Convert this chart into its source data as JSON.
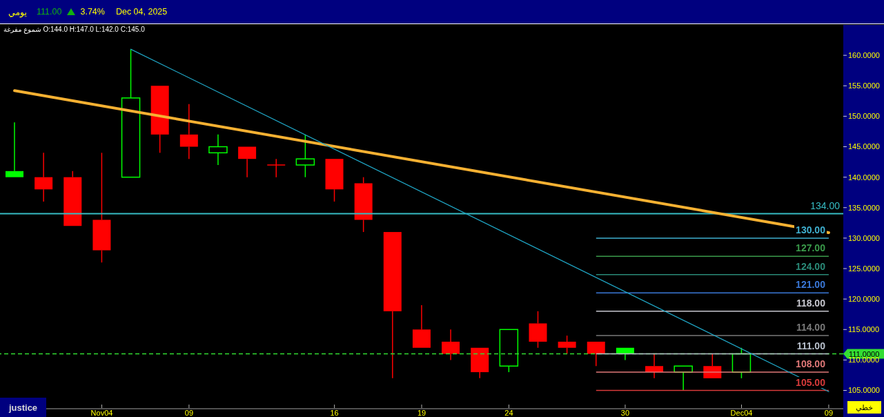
{
  "chart_data": {
    "type": "candlestick",
    "title": "يومي",
    "subtitle": "شموع مفرغة O:144.0 H:147.0 L:142.0 C:145.0",
    "annotations": [
      "111.00",
      "3.74%",
      "Dec 04, 2025",
      "justice",
      "خطي"
    ],
    "categories": [
      null,
      null,
      null,
      "Nov04",
      null,
      null,
      "09",
      null,
      null,
      null,
      null,
      "16",
      null,
      null,
      "19",
      null,
      null,
      "24",
      null,
      null,
      null,
      "30",
      null,
      null,
      null,
      "Dec04",
      null,
      null,
      "09"
    ],
    "ohlc": [
      [
        141,
        149,
        140,
        140
      ],
      [
        140,
        144,
        136,
        138
      ],
      [
        140,
        141,
        132,
        132
      ],
      [
        133,
        144,
        126,
        128
      ],
      [
        140,
        161,
        140,
        153
      ],
      [
        155,
        155,
        144,
        147
      ],
      [
        147,
        152,
        143,
        145
      ],
      [
        144,
        147,
        142,
        145
      ],
      [
        145,
        145,
        140,
        143
      ],
      [
        142,
        143,
        140,
        142
      ],
      [
        142,
        147,
        140,
        143
      ],
      [
        143,
        143,
        136,
        138
      ],
      [
        139,
        140,
        131,
        133
      ],
      [
        131,
        131,
        107,
        118
      ],
      [
        115,
        119,
        112,
        112
      ],
      [
        113,
        115,
        110,
        111
      ],
      [
        112,
        112,
        107,
        108
      ],
      [
        109,
        115,
        108,
        115
      ],
      [
        116,
        118,
        112,
        113
      ],
      [
        113,
        114,
        111,
        112
      ],
      [
        113,
        113,
        109,
        111
      ],
      [
        112,
        112,
        110,
        111
      ],
      [
        109,
        111,
        107,
        108
      ],
      [
        108,
        109,
        105,
        109
      ],
      [
        109,
        111,
        107,
        107
      ],
      [
        108,
        112,
        107,
        111
      ],
      null,
      null,
      null
    ],
    "colors": [
      "#00ff00",
      "#ff0000",
      "#ff0000",
      "#ff0000",
      "#00ff00",
      "#ff0000",
      "#ff0000",
      "#00ff00",
      "#ff0000",
      "#ff0000",
      "#00ff00",
      "#ff0000",
      "#ff0000",
      "#ff0000",
      "#ff0000",
      "#ff0000",
      "#ff0000",
      "#00ff00",
      "#ff0000",
      "#ff0000",
      "#ff0000",
      "#00ff00",
      "#ff0000",
      "#00ff00",
      "#ff0000",
      "#00ff00",
      null,
      null,
      null
    ],
    "series": [
      {
        "type": "line",
        "color": "#f7b132",
        "values": [
          154.2,
          null,
          null,
          null,
          null,
          null,
          null,
          null,
          null,
          null,
          null,
          null,
          null,
          null,
          null,
          null,
          null,
          null,
          null,
          null,
          null,
          null,
          null,
          null,
          null,
          null,
          null,
          null,
          130.9
        ]
      },
      {
        "type": "line",
        "color": "#1fa3c2",
        "values": [
          null,
          null,
          null,
          null,
          161.0,
          null,
          null,
          null,
          null,
          null,
          null,
          null,
          null,
          null,
          null,
          null,
          null,
          null,
          null,
          null,
          null,
          null,
          null,
          null,
          null,
          null,
          null,
          null,
          104.8
        ]
      }
    ],
    "ylim": [
      102,
      165
    ],
    "yticks": [
      {
        "value": 105,
        "label": "105.0000"
      },
      {
        "value": 110,
        "label": "110.0000"
      },
      {
        "value": 115,
        "label": "115.0000"
      },
      {
        "value": 120,
        "label": "120.0000"
      },
      {
        "value": 125,
        "label": "125.0000"
      },
      {
        "value": 130,
        "label": "130.0000"
      },
      {
        "value": 135,
        "label": "135.0000"
      },
      {
        "value": 140,
        "label": "140.0000"
      },
      {
        "value": 145,
        "label": "145.0000"
      },
      {
        "value": 150,
        "label": "150.0000"
      },
      {
        "value": 155,
        "label": "155.0000"
      },
      {
        "value": 160,
        "label": "160.0000"
      }
    ],
    "ref_lines": [
      {
        "axis": "y",
        "value": 134,
        "label": "134.00",
        "color": "#36bcc4"
      },
      {
        "axis": "y",
        "value": 111,
        "label": "111.0000",
        "color": "#33dd33",
        "line_style": "dashed"
      },
      {
        "axis": "y",
        "value": 130,
        "label": "130.00",
        "color": "#3fb0d0"
      },
      {
        "axis": "y",
        "value": 127,
        "label": "127.00",
        "color": "#3a9a4a"
      },
      {
        "axis": "y",
        "value": 124,
        "label": "124.00",
        "color": "#2a8a78"
      },
      {
        "axis": "y",
        "value": 121,
        "label": "121.00",
        "color": "#3a78d8"
      },
      {
        "axis": "y",
        "value": 118,
        "label": "118.00",
        "color": "#c8c8d0"
      },
      {
        "axis": "y",
        "value": 114,
        "label": "114.00",
        "color": "#7a7a7a"
      },
      {
        "axis": "y",
        "value": 111,
        "label": "111.00",
        "color": "#b8c0cc"
      },
      {
        "axis": "y",
        "value": 108,
        "label": "108.00",
        "color": "#e07878"
      },
      {
        "axis": "y",
        "value": 105,
        "label": "105.00",
        "color": "#d83a3a"
      }
    ]
  }
}
